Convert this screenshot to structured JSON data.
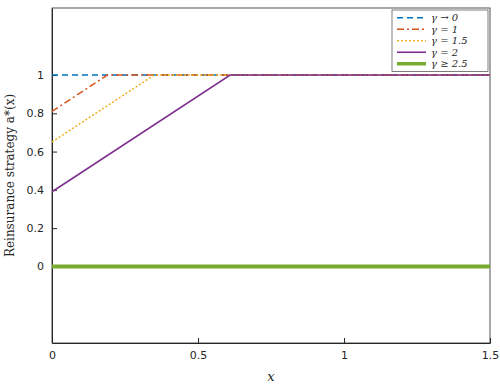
{
  "chart_data": {
    "type": "line",
    "x_label": "x",
    "y_label": "Reinsurance strategy a*(x)",
    "xlim": [
      0,
      1.5
    ],
    "xticks": [
      0,
      0.5,
      1,
      1.5
    ],
    "ylim": [
      -0.4,
      1.35
    ],
    "yticks": [
      0,
      0.2,
      0.4,
      0.6,
      0.8,
      1
    ],
    "grid": false,
    "legend": "top-right",
    "series": [
      {
        "name": "γ → 0",
        "color": "#0072bd",
        "line_style": "dashed",
        "x": [
          0,
          1.5
        ],
        "values": [
          1,
          1
        ]
      },
      {
        "name": "γ = 1",
        "color": "#d95319",
        "line_style": "dashdot",
        "x": [
          0,
          0.19,
          1.5
        ],
        "values": [
          0.81,
          1,
          1
        ]
      },
      {
        "name": "γ = 1.5",
        "color": "#edb120",
        "line_style": "dotted",
        "x": [
          0,
          0.35,
          1.5
        ],
        "values": [
          0.65,
          1,
          1
        ]
      },
      {
        "name": "γ = 2",
        "color": "#7e2f8e",
        "line_style": "solid",
        "x": [
          0,
          0.61,
          1.5
        ],
        "values": [
          0.39,
          1,
          1
        ]
      },
      {
        "name": "γ ≥ 2.5",
        "color": "#77ac30",
        "line_style": "solid",
        "x": [
          0,
          1.5
        ],
        "values": [
          0,
          0
        ]
      }
    ]
  }
}
